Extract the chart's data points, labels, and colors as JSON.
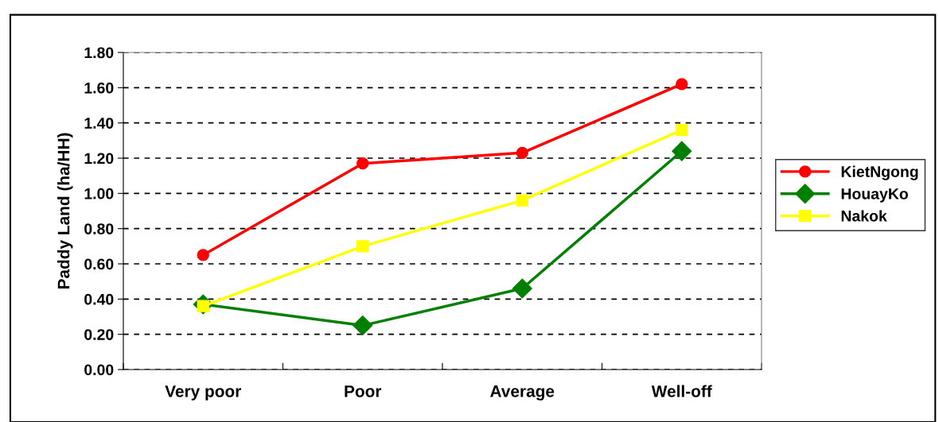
{
  "chart_data": {
    "type": "line",
    "ylabel": "Paddy Land (ha/HH)",
    "categories": [
      "Very poor",
      "Poor",
      "Average",
      "Well-off"
    ],
    "series": [
      {
        "name": "KietNgong",
        "color": "#ff0000",
        "marker": "circle",
        "values": [
          0.65,
          1.17,
          1.23,
          1.62
        ]
      },
      {
        "name": "HouayKo",
        "color": "#008000",
        "marker": "diamond",
        "values": [
          0.37,
          0.25,
          0.46,
          1.24
        ]
      },
      {
        "name": "Nakok",
        "color": "#ffff00",
        "marker": "square",
        "values": [
          0.36,
          0.7,
          0.96,
          1.36
        ]
      }
    ],
    "ylim": [
      0,
      1.8
    ],
    "yticks": [
      {
        "value": 0,
        "label": "0.00"
      },
      {
        "value": 0.2,
        "label": "0.20"
      },
      {
        "value": 0.4,
        "label": "0.40"
      },
      {
        "value": 0.6,
        "label": "0.60"
      },
      {
        "value": 0.8,
        "label": "0.80"
      },
      {
        "value": 1.0,
        "label": "1.00"
      },
      {
        "value": 1.2,
        "label": "1.20"
      },
      {
        "value": 1.4,
        "label": "1.40"
      },
      {
        "value": 1.6,
        "label": "1.60"
      },
      {
        "value": 1.8,
        "label": "1.80"
      }
    ],
    "grid": "y",
    "line_style": "solid",
    "legend": "right"
  }
}
